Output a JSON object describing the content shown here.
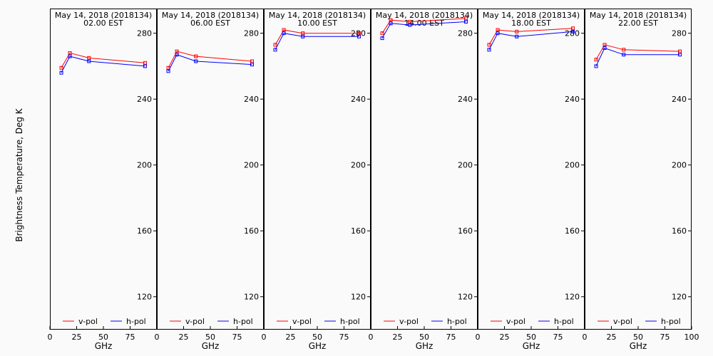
{
  "chart_data": {
    "type": "line",
    "ylabel": "Brightness Temperature, Deg K",
    "xlabel": "GHz",
    "xlim": [
      0,
      100
    ],
    "ylim": [
      100,
      295
    ],
    "xticks": [
      0,
      25,
      50,
      75
    ],
    "xtick_labels_last_panel": [
      0,
      25,
      50,
      75,
      100
    ],
    "yticks": [
      120,
      160,
      200,
      240,
      280
    ],
    "legend_placement": "bottom",
    "colors": {
      "v-pol": "#ff0000",
      "h-pol": "#0000ff"
    },
    "panels": [
      {
        "title": "May 14, 2018 (2018134)",
        "subtitle": "02.00 EST",
        "series": [
          {
            "name": "v-pol",
            "x": [
              10.7,
              18.7,
              36.5,
              89.0
            ],
            "values": [
              259,
              268,
              265,
              262
            ]
          },
          {
            "name": "h-pol",
            "x": [
              10.7,
              18.7,
              36.5,
              89.0
            ],
            "values": [
              256,
              266,
              263,
              260
            ]
          }
        ]
      },
      {
        "title": "May 14, 2018 (2018134)",
        "subtitle": "06.00 EST",
        "series": [
          {
            "name": "v-pol",
            "x": [
              10.7,
              18.7,
              36.5,
              89.0
            ],
            "values": [
              259,
              269,
              266,
              263
            ]
          },
          {
            "name": "h-pol",
            "x": [
              10.7,
              18.7,
              36.5,
              89.0
            ],
            "values": [
              257,
              267,
              263,
              261
            ]
          }
        ]
      },
      {
        "title": "May 14, 2018 (2018134)",
        "subtitle": "10.00 EST",
        "series": [
          {
            "name": "v-pol",
            "x": [
              10.7,
              18.7,
              36.5,
              89.0
            ],
            "values": [
              273,
              282,
              280,
              280
            ]
          },
          {
            "name": "h-pol",
            "x": [
              10.7,
              18.7,
              36.5,
              89.0
            ],
            "values": [
              270,
              280,
              278,
              278
            ]
          }
        ]
      },
      {
        "title": "May 14, 2018 (2018134)",
        "subtitle": "14.00 EST",
        "series": [
          {
            "name": "v-pol",
            "x": [
              10.7,
              18.7,
              36.5,
              89.0
            ],
            "values": [
              280,
              288,
              287,
              289
            ]
          },
          {
            "name": "h-pol",
            "x": [
              10.7,
              18.7,
              36.5,
              89.0
            ],
            "values": [
              277,
              286,
              285,
              287
            ]
          }
        ]
      },
      {
        "title": "May 14, 2018 (2018134)",
        "subtitle": "18.00 EST",
        "series": [
          {
            "name": "v-pol",
            "x": [
              10.7,
              18.7,
              36.5,
              89.0
            ],
            "values": [
              273,
              282,
              281,
              283
            ]
          },
          {
            "name": "h-pol",
            "x": [
              10.7,
              18.7,
              36.5,
              89.0
            ],
            "values": [
              270,
              280,
              278,
              281
            ]
          }
        ]
      },
      {
        "title": "May 14, 2018 (2018134)",
        "subtitle": "22.00 EST",
        "series": [
          {
            "name": "v-pol",
            "x": [
              10.7,
              18.7,
              36.5,
              89.0
            ],
            "values": [
              264,
              273,
              270,
              269
            ]
          },
          {
            "name": "h-pol",
            "x": [
              10.7,
              18.7,
              36.5,
              89.0
            ],
            "values": [
              260,
              271,
              267,
              267
            ]
          }
        ]
      }
    ]
  }
}
